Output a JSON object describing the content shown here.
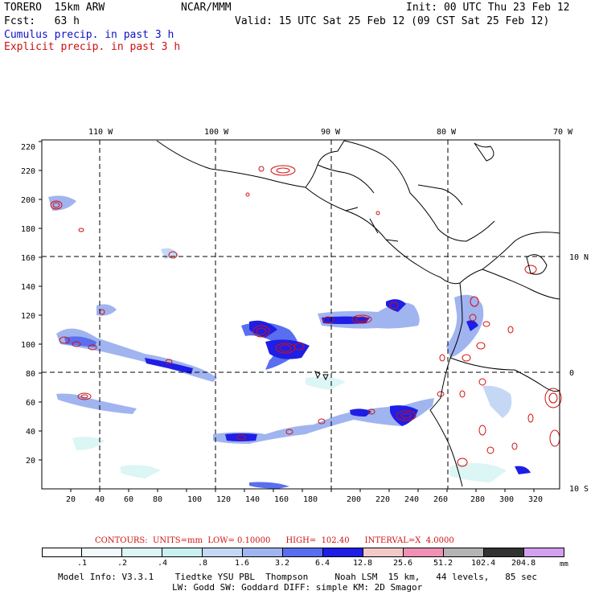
{
  "header": {
    "model": "TORERO  15km ARW",
    "org": "NCAR/MMM",
    "init": "Init: 00 UTC Thu 23 Feb 12",
    "fcst": "Fcst:   63 h",
    "valid": "Valid: 15 UTC Sat 25 Feb 12 (09 CST Sat 25 Feb 12)",
    "legend_cumulus": "Cumulus precip. in past 3 h",
    "legend_explicit": "Explicit precip. in past 3 h"
  },
  "axes": {
    "x_ticks": [
      "20",
      "40",
      "60",
      "80",
      "100",
      "120",
      "140",
      "160",
      "180",
      "200",
      "220",
      "240",
      "260",
      "280",
      "300",
      "320"
    ],
    "y_ticks": [
      "20",
      "40",
      "60",
      "80",
      "100",
      "120",
      "140",
      "160",
      "180",
      "200",
      "220"
    ],
    "lon_labels": [
      "110 W",
      "100 W",
      "90 W",
      "80 W",
      "70 W"
    ],
    "lat_labels": [
      "10 N",
      "0",
      "10 S"
    ]
  },
  "contours": {
    "text": "CONTOURS:  UNITS=mm  LOW= 0.10000      HIGH=  102.40      INTERVAL=X  4.0000"
  },
  "colorbar": {
    "labels": [
      ".1",
      ".2",
      ".4",
      ".8",
      "1.6",
      "3.2",
      "6.4",
      "12.8",
      "25.6",
      "51.2",
      "102.4",
      "204.8"
    ],
    "unit": "mm",
    "colors": [
      "#ffffff",
      "#f0fafa",
      "#dcf5f5",
      "#c8f0f0",
      "#c4d8f5",
      "#a0b4f0",
      "#5a6ef0",
      "#1e1ee6",
      "#f5c8c8",
      "#f090b4",
      "#b4b4b4",
      "#323232",
      "#d2a0f0"
    ]
  },
  "footer": {
    "line1": "Model Info: V3.3.1    Tiedtke YSU PBL  Thompson     Noah LSM  15 km,   44 levels,   85 sec",
    "line2": "LW: Godd SW: Goddard DIFF: simple KM: 2D Smagor"
  },
  "icons": {
    "map": "precipitation-map"
  }
}
